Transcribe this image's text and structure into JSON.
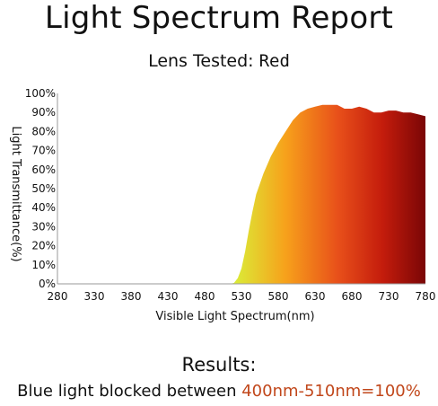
{
  "header": {
    "title": "Light Spectrum Report",
    "lens_label": "Lens Tested:",
    "lens_value": "Red"
  },
  "footer": {
    "results_label": "Results:",
    "blocked_prefix": "Blue light blocked between ",
    "blocked_value": "400nm-510nm=100%"
  },
  "colors": {
    "highlight": "#c1471b",
    "gradient": [
      "#d8f23a",
      "#f7a21b",
      "#e8501a",
      "#c41c0c",
      "#7a0606"
    ]
  },
  "chart_data": {
    "type": "area",
    "title": "",
    "xlabel": "Visible Light Spectrum(nm)",
    "ylabel": "Light Transmittance(%)",
    "xlim": [
      280,
      780
    ],
    "ylim": [
      0,
      100
    ],
    "x_ticks": [
      "280",
      "330",
      "380",
      "430",
      "480",
      "530",
      "580",
      "630",
      "680",
      "730",
      "780"
    ],
    "y_ticks": [
      "0%",
      "10%",
      "20%",
      "30%",
      "40%",
      "50%",
      "60%",
      "70%",
      "80%",
      "90%",
      "100%"
    ],
    "grid": false,
    "series": [
      {
        "x": [
          515,
          520,
          525,
          530,
          535,
          540,
          545,
          550,
          560,
          570,
          580,
          590,
          600,
          610,
          620,
          630,
          640,
          650,
          660,
          670,
          680,
          690,
          700,
          710,
          720,
          730,
          740,
          750,
          760,
          770,
          780
        ],
        "y": [
          0,
          0.5,
          3,
          8,
          17,
          28,
          38,
          47,
          58,
          67,
          74,
          80,
          86,
          90,
          92,
          93,
          94,
          94,
          94,
          92,
          92,
          93,
          92,
          90,
          90,
          91,
          91,
          90,
          90,
          89,
          88
        ]
      }
    ]
  }
}
